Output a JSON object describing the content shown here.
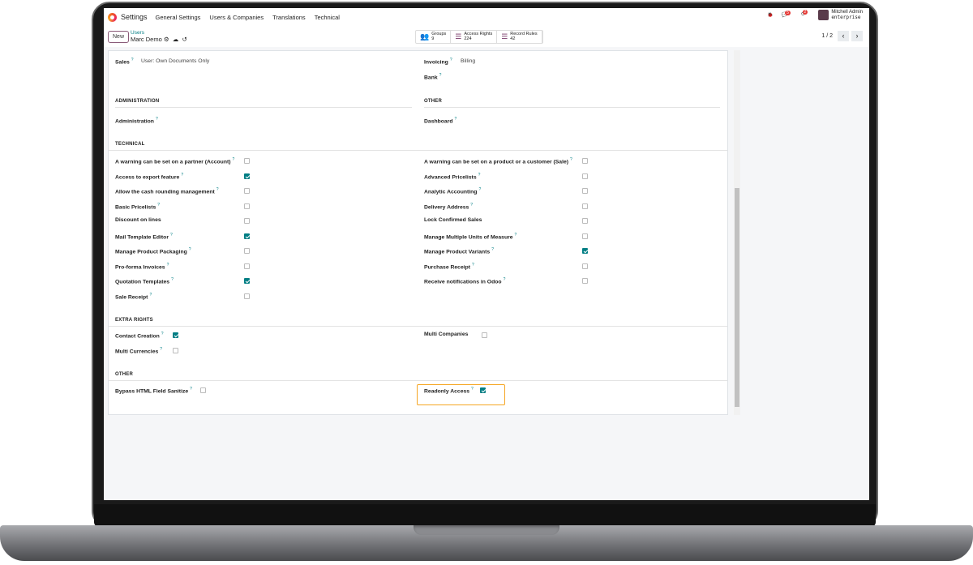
{
  "nav": {
    "app": "Settings",
    "menu": [
      "General Settings",
      "Users & Companies",
      "Translations",
      "Technical"
    ],
    "messages_badge": "5",
    "activities_badge": "2",
    "user": "Mitchell Admin",
    "db": "enterprise"
  },
  "control": {
    "new": "New",
    "breadcrumb": "Users",
    "record": "Marc Demo",
    "pager": "1 / 2"
  },
  "stats": [
    {
      "label": "Groups",
      "count": "9"
    },
    {
      "label": "Access Rights",
      "count": "224"
    },
    {
      "label": "Record Rules",
      "count": "42"
    }
  ],
  "top": {
    "sales_label": "Sales",
    "sales_value": "User: Own Documents Only",
    "invoicing_label": "Invoicing",
    "invoicing_value": "Billing",
    "bank_label": "Bank"
  },
  "sections": {
    "administration": "ADMINISTRATION",
    "other_top": "OTHER",
    "technical": "TECHNICAL",
    "extra": "EXTRA RIGHTS",
    "other": "OTHER"
  },
  "admin": {
    "administration": "Administration",
    "dashboard": "Dashboard"
  },
  "technical_left": [
    {
      "label": "A warning can be set on a partner (Account)",
      "help": true,
      "checked": false
    },
    {
      "label": "Access to export feature",
      "help": true,
      "checked": true
    },
    {
      "label": "Allow the cash rounding management",
      "help": true,
      "checked": false
    },
    {
      "label": "Basic Pricelists",
      "help": true,
      "checked": false
    },
    {
      "label": "Discount on lines",
      "help": false,
      "checked": false
    },
    {
      "label": "Mail Template Editor",
      "help": true,
      "checked": true
    },
    {
      "label": "Manage Product Packaging",
      "help": true,
      "checked": false
    },
    {
      "label": "Pro-forma Invoices",
      "help": true,
      "checked": false
    },
    {
      "label": "Quotation Templates",
      "help": true,
      "checked": true
    },
    {
      "label": "Sale Receipt",
      "help": true,
      "checked": false
    }
  ],
  "technical_right": [
    {
      "label": "A warning can be set on a product or a customer (Sale)",
      "help": true,
      "checked": false
    },
    {
      "label": "Advanced Pricelists",
      "help": true,
      "checked": false
    },
    {
      "label": "Analytic Accounting",
      "help": true,
      "checked": false
    },
    {
      "label": "Delivery Address",
      "help": true,
      "checked": false
    },
    {
      "label": "Lock Confirmed Sales",
      "help": false,
      "checked": false
    },
    {
      "label": "Manage Multiple Units of Measure",
      "help": true,
      "checked": false
    },
    {
      "label": "Manage Product Variants",
      "help": true,
      "checked": true
    },
    {
      "label": "Purchase Receipt",
      "help": true,
      "checked": false
    },
    {
      "label": "Receive notifications in Odoo",
      "help": true,
      "checked": false
    }
  ],
  "extra": [
    {
      "label": "Contact Creation",
      "help": true,
      "checked": true
    },
    {
      "label": "Multi Companies",
      "help": false,
      "checked": false
    },
    {
      "label": "Multi Currencies",
      "help": true,
      "checked": false
    }
  ],
  "other": [
    {
      "label": "Bypass HTML Field Sanitize",
      "help": true,
      "checked": false
    },
    {
      "label": "Readonly Access",
      "help": true,
      "checked": true
    }
  ],
  "help_mark": "?",
  "colors": {
    "accent": "#017e84",
    "highlight": "#f5a623",
    "brand": "#714b67"
  }
}
